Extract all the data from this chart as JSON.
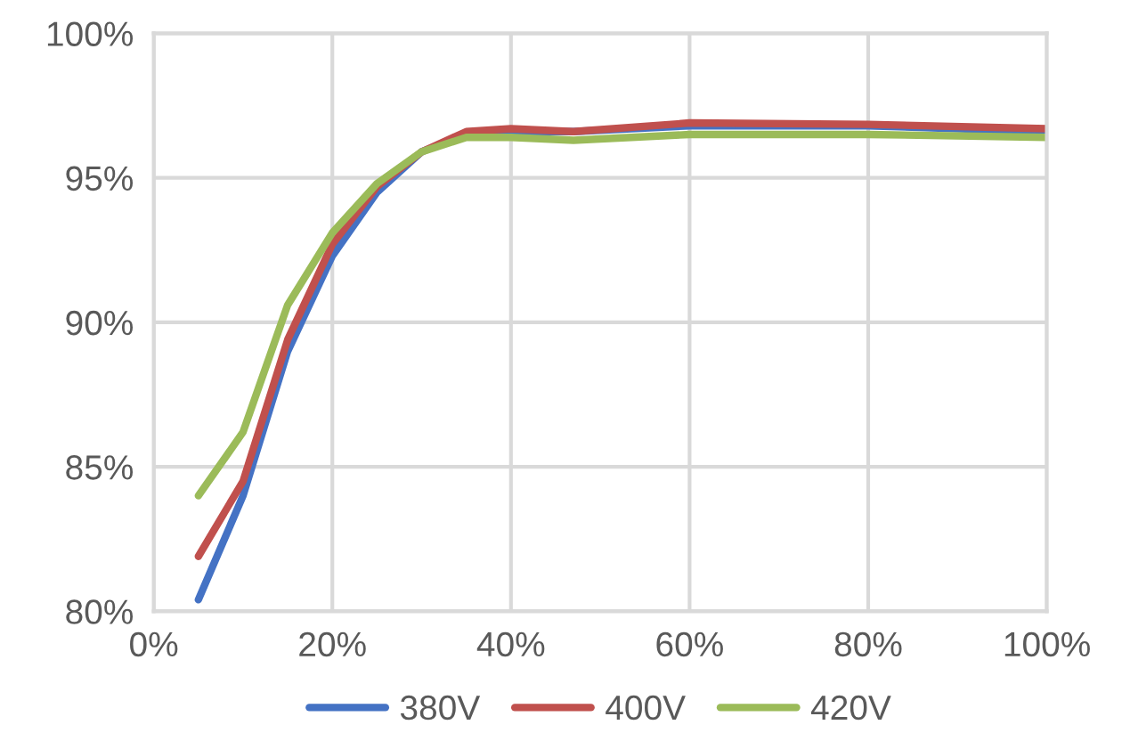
{
  "chart_data": {
    "type": "line",
    "x": [
      5,
      10,
      15,
      20,
      25,
      30,
      35,
      40,
      47,
      60,
      80,
      100
    ],
    "series": [
      {
        "name": "380V",
        "color": "#4472c4",
        "values": [
          80.4,
          84.0,
          89.0,
          92.3,
          94.5,
          95.9,
          96.5,
          96.6,
          96.6,
          96.8,
          96.8,
          96.6
        ]
      },
      {
        "name": "400V",
        "color": "#c0504d",
        "values": [
          81.9,
          84.5,
          89.4,
          92.7,
          94.7,
          95.9,
          96.6,
          96.7,
          96.6,
          96.9,
          96.85,
          96.7
        ]
      },
      {
        "name": "420V",
        "color": "#9bbb59",
        "values": [
          84.0,
          86.2,
          90.6,
          93.1,
          94.8,
          95.9,
          96.4,
          96.4,
          96.3,
          96.5,
          96.5,
          96.4
        ]
      }
    ],
    "xlim": [
      0,
      100
    ],
    "xticks": [
      {
        "value": 0,
        "label": "0%"
      },
      {
        "value": 20,
        "label": "20%"
      },
      {
        "value": 40,
        "label": "40%"
      },
      {
        "value": 60,
        "label": "60%"
      },
      {
        "value": 80,
        "label": "80%"
      },
      {
        "value": 100,
        "label": "100%"
      }
    ],
    "ylim": [
      80,
      100
    ],
    "yticks": [
      {
        "value": 80,
        "label": "80%"
      },
      {
        "value": 85,
        "label": "85%"
      },
      {
        "value": 90,
        "label": "90%"
      },
      {
        "value": 95,
        "label": "95%"
      },
      {
        "value": 100,
        "label": "100%"
      }
    ],
    "grid": true,
    "legend": "bottom",
    "marker": "none",
    "line_style": "solid"
  }
}
